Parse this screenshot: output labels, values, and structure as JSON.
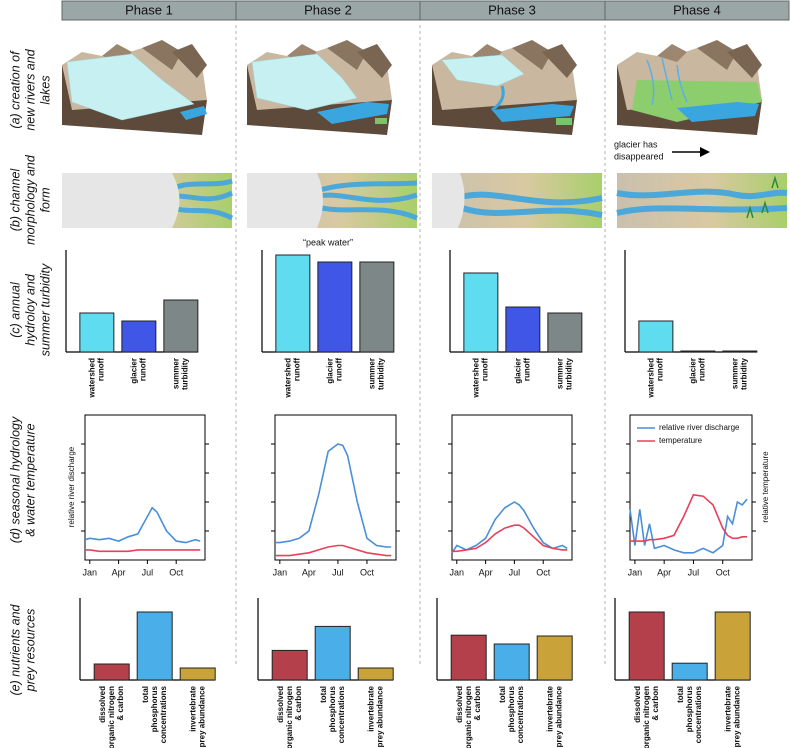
{
  "header": {
    "phases": [
      "Phase 1",
      "Phase 2",
      "Phase 3",
      "Phase 4"
    ]
  },
  "row_labels": [
    [
      "(a) creation of",
      "new rivers and",
      "lakes"
    ],
    [
      "(b) channel",
      "morphology and",
      "form"
    ],
    [
      "(c) annual",
      "hydroloy and",
      "summer turbidity"
    ],
    [
      "(d) seasonal hydrology",
      "& water temperature"
    ],
    [
      "(e) nutrients and",
      "prey resources"
    ]
  ],
  "annotations": {
    "glacier_gone": [
      "glacier has",
      "disappeared"
    ],
    "peak_water": "“peak water”"
  },
  "hydrology": {
    "categories": [
      [
        "watershed",
        "runoff"
      ],
      [
        "glacier",
        "runoff"
      ],
      [
        "summer",
        "turbidity"
      ]
    ],
    "colors": [
      "#5fdcf0",
      "#3f56e6",
      "#7d8787"
    ],
    "ylim": [
      0,
      100
    ],
    "panels": [
      {
        "values": [
          39,
          31,
          52
        ]
      },
      {
        "values": [
          97,
          90,
          90
        ]
      },
      {
        "values": [
          79,
          45,
          39
        ]
      },
      {
        "values": [
          31,
          1,
          1
        ]
      }
    ]
  },
  "seasonal": {
    "y_label": "relative river discharge",
    "y2_label": "relative temperature",
    "series_names": [
      "relative river discharge",
      "temperature"
    ],
    "colors": [
      "#4a8fd8",
      "#e8405a"
    ],
    "xlim": [
      0.5,
      13
    ],
    "ylim": [
      0,
      100
    ],
    "xticks": [
      {
        "value": 1,
        "label": "Jan"
      },
      {
        "value": 4,
        "label": "Apr"
      },
      {
        "value": 7,
        "label": "Jul"
      },
      {
        "value": 10,
        "label": "Oct"
      }
    ],
    "panels": [
      {
        "x": [
          0.5,
          1,
          2,
          3,
          4,
          5,
          6,
          7,
          7.5,
          8,
          9,
          10,
          11,
          12,
          12.5
        ],
        "discharge": [
          14,
          15,
          14,
          15,
          13,
          16,
          18,
          30,
          36,
          33,
          20,
          13,
          12,
          14,
          13
        ],
        "temperature": [
          7,
          7,
          6,
          6,
          6,
          6,
          7,
          7,
          7,
          7,
          7,
          7,
          7,
          7,
          7
        ]
      },
      {
        "x": [
          0.5,
          1,
          2,
          3,
          4,
          5,
          6,
          7,
          7.5,
          8,
          9,
          10,
          11,
          12,
          12.5
        ],
        "discharge": [
          12,
          12,
          13,
          15,
          20,
          45,
          75,
          80,
          79,
          72,
          40,
          15,
          10,
          9,
          9
        ],
        "temperature": [
          3,
          3,
          3,
          4,
          5,
          7,
          9,
          10,
          10,
          9,
          7,
          5,
          4,
          3,
          3
        ]
      },
      {
        "x": [
          0.5,
          1,
          2,
          3,
          4,
          5,
          6,
          7,
          7.5,
          8,
          9,
          10,
          11,
          12,
          12.5
        ],
        "discharge": [
          5,
          10,
          7,
          10,
          15,
          28,
          36,
          40,
          38,
          34,
          22,
          12,
          8,
          10,
          8
        ],
        "temperature": [
          6,
          6,
          7,
          8,
          12,
          18,
          22,
          24,
          24,
          22,
          16,
          10,
          8,
          7,
          7
        ]
      },
      {
        "x": [
          0.5,
          1,
          1.5,
          2,
          2.5,
          3,
          4,
          5,
          6,
          7,
          8,
          9,
          10,
          10.5,
          11,
          11.5,
          12,
          12.5
        ],
        "discharge": [
          35,
          10,
          35,
          10,
          25,
          8,
          10,
          7,
          5,
          5,
          8,
          5,
          10,
          30,
          25,
          40,
          38,
          42
        ],
        "temperature": [
          13,
          13,
          13,
          13,
          14,
          14,
          15,
          17,
          30,
          45,
          44,
          38,
          22,
          17,
          15,
          15,
          16,
          16
        ]
      }
    ]
  },
  "nutrients": {
    "categories": [
      [
        "dissolved",
        "organic nitrogen",
        "& carbon"
      ],
      [
        "total",
        "phosphorus",
        "concentrations"
      ],
      [
        "invertebrate",
        "prey abundance"
      ]
    ],
    "colors": [
      "#b3404a",
      "#4aaee8",
      "#c9a23a"
    ],
    "ylim": [
      0,
      100
    ],
    "panels": [
      {
        "values": [
          20,
          85,
          15
        ]
      },
      {
        "values": [
          37,
          67,
          15
        ]
      },
      {
        "values": [
          56,
          45,
          55
        ]
      },
      {
        "values": [
          85,
          21,
          85
        ]
      }
    ]
  }
}
